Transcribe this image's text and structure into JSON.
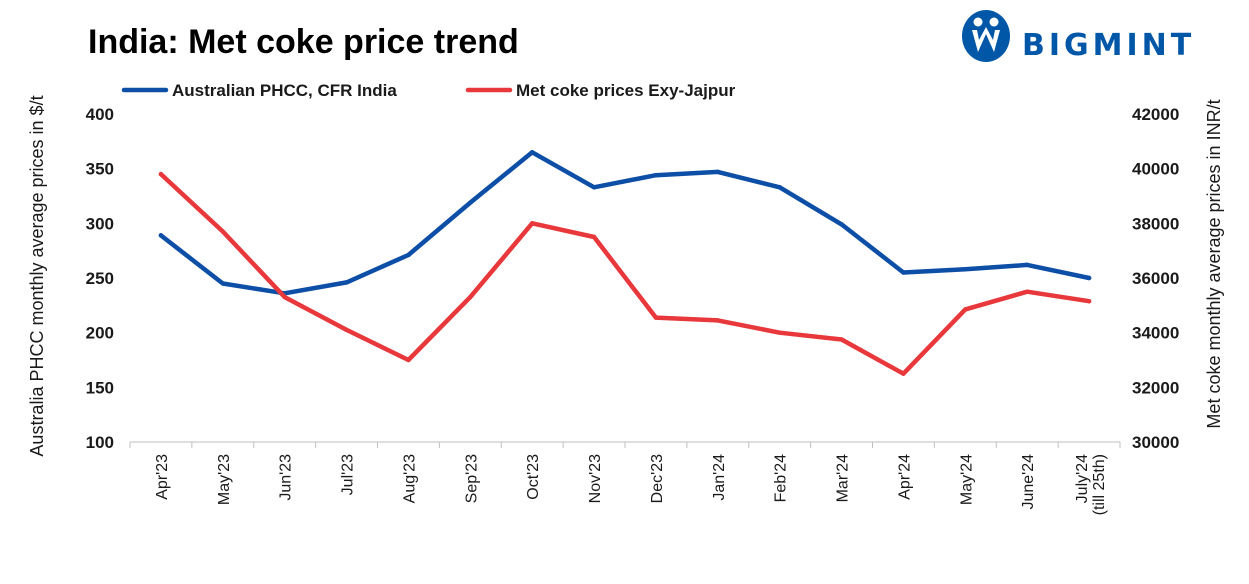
{
  "brand": {
    "name": "BIGMINT",
    "color": "#0057a8",
    "logo_icon": "bigmint-logo-icon"
  },
  "chart_data": {
    "type": "line",
    "title": "India: Met coke price trend",
    "categories": [
      "Apr'23",
      "May'23",
      "Jun'23",
      "Jul'23",
      "Aug'23",
      "Sep'23",
      "Oct'23",
      "Nov'23",
      "Dec'23",
      "Jan'24",
      "Feb'24",
      "Mar'24",
      "Apr'24",
      "May'24",
      "June'24",
      "July'24 (till 25th)"
    ],
    "series": [
      {
        "name": "Australian PHCC, CFR India",
        "axis": "left",
        "color": "#0d4ea6",
        "values": [
          289,
          245,
          236,
          246,
          271,
          319,
          365,
          333,
          344,
          347,
          333,
          299,
          255,
          258,
          262,
          250
        ]
      },
      {
        "name": "Met coke prices Exy-Jajpur",
        "axis": "right",
        "color": "#e8383b",
        "values": [
          39800,
          37700,
          35300,
          34100,
          33000,
          35300,
          38000,
          37500,
          34550,
          34450,
          34000,
          33750,
          32500,
          34850,
          35500,
          35150
        ]
      }
    ],
    "ylabel": "Australia PHCC monthly average prices in $/t",
    "y2label": "Met coke monthly average prices in INR/t",
    "ylim": [
      100,
      400
    ],
    "y2lim": [
      30000,
      42000
    ],
    "yticks": [
      100,
      150,
      200,
      250,
      300,
      350,
      400
    ],
    "y2ticks": [
      30000,
      32000,
      34000,
      36000,
      38000,
      40000,
      42000
    ],
    "legend_position": "top",
    "grid": false
  }
}
